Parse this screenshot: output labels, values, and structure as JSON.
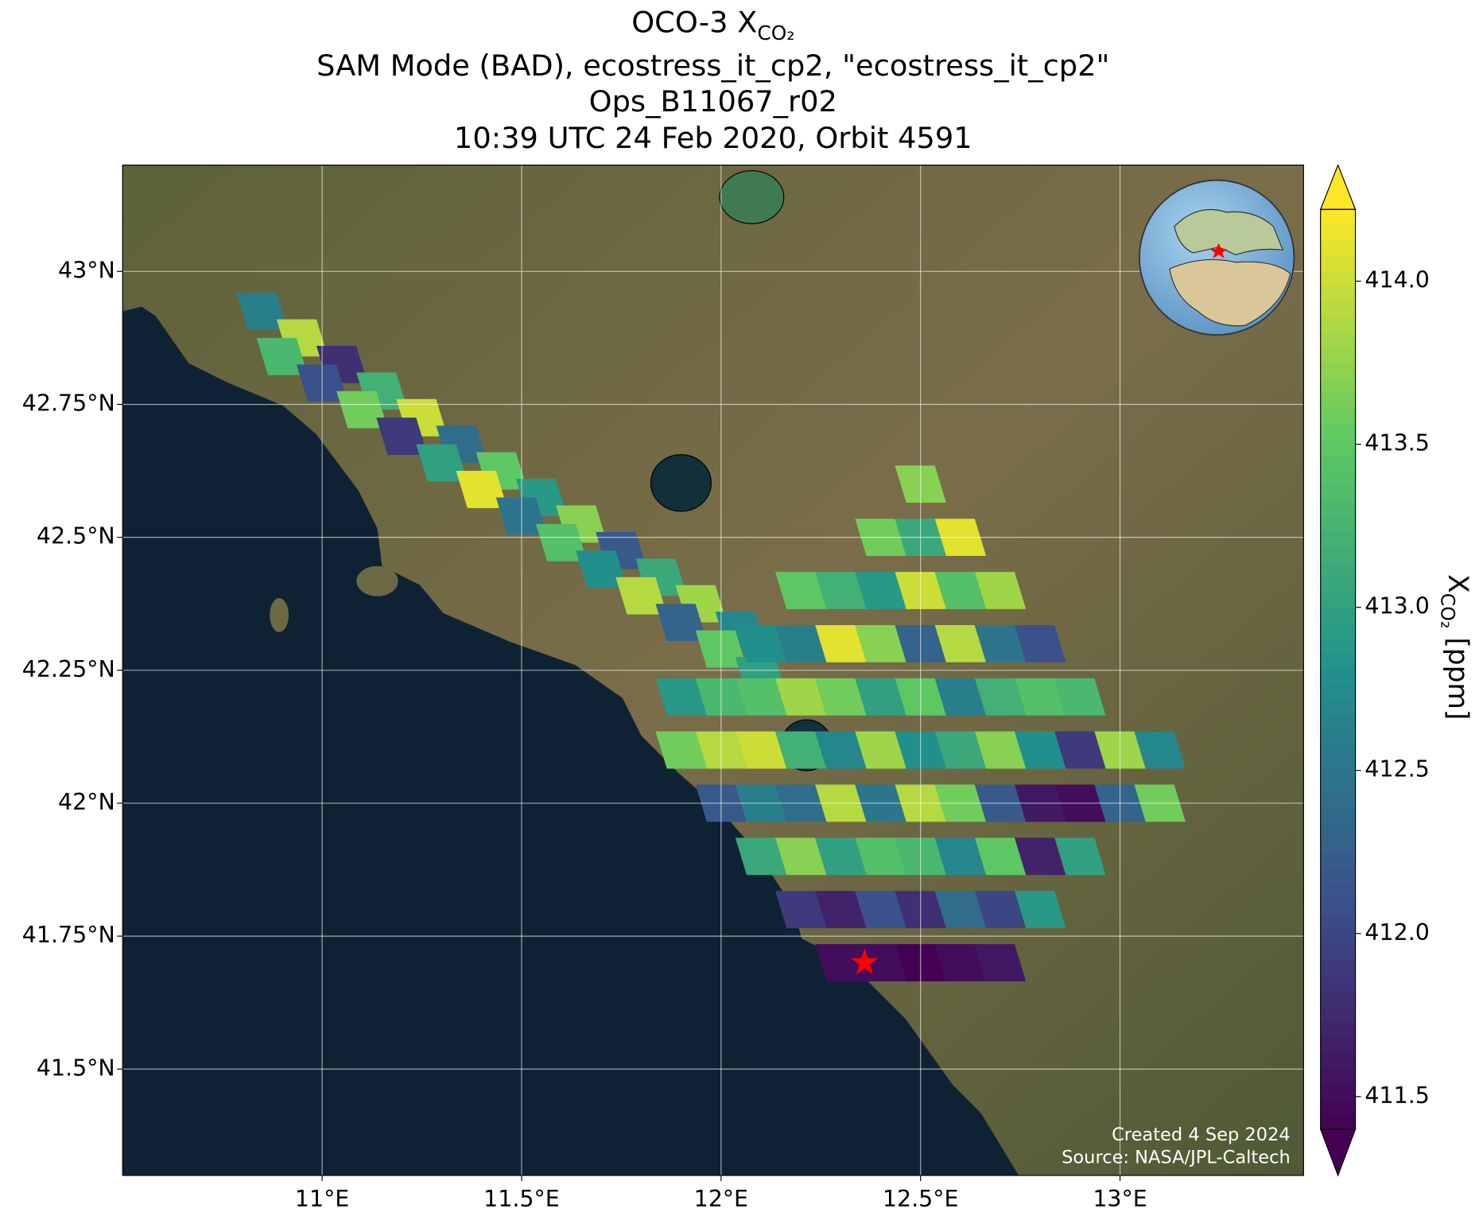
{
  "chart_data": {
    "type": "map",
    "title": {
      "main": "OCO-3 X",
      "subscript": "CO₂",
      "lines": [
        "SAM Mode (BAD), ecostress_it_cp2, \"ecostress_it_cp2\"",
        "Ops_B11067_r02",
        "10:39 UTC 24 Feb 2020, Orbit 4591"
      ]
    },
    "xlim": [
      10.5,
      13.46
    ],
    "ylim": [
      41.3,
      43.2
    ],
    "xticks": [
      {
        "value": 11,
        "label": "11°E"
      },
      {
        "value": 11.5,
        "label": "11.5°E"
      },
      {
        "value": 12,
        "label": "12°E"
      },
      {
        "value": 12.5,
        "label": "12.5°E"
      },
      {
        "value": 13,
        "label": "13°E"
      }
    ],
    "yticks": [
      {
        "value": 41.5,
        "label": "41.5°N"
      },
      {
        "value": 41.75,
        "label": "41.75°N"
      },
      {
        "value": 42,
        "label": "42°N"
      },
      {
        "value": 42.25,
        "label": "42.25°N"
      },
      {
        "value": 42.5,
        "label": "42.5°N"
      },
      {
        "value": 42.75,
        "label": "42.75°N"
      },
      {
        "value": 43,
        "label": "43°N"
      }
    ],
    "grid": true,
    "colormap": "viridis",
    "colorbar": {
      "label": {
        "main": "X",
        "subscript": "CO₂",
        "unit": " [ppm]"
      },
      "lim": [
        411.4,
        414.22
      ],
      "ticks": [
        411.5,
        {
          "value": 412,
          "label": "412.0"
        },
        412.5,
        {
          "value": 413,
          "label": "413.0"
        },
        413.5,
        {
          "value": 414,
          "label": "414.0"
        }
      ]
    },
    "target": {
      "lon": 12.36,
      "lat": 41.7,
      "color": "#ff0000"
    },
    "soundings": {
      "lon": [
        10.85,
        10.95,
        11.05,
        11.15,
        11.25,
        11.35,
        11.45,
        11.55,
        11.65,
        11.75,
        11.85,
        11.95,
        12.05,
        10.9,
        11.0,
        11.1,
        11.2,
        11.3,
        11.4,
        11.5,
        11.6,
        11.7,
        11.8,
        11.9,
        12.0,
        12.1,
        11.9,
        11.9,
        12.0,
        12.0,
        12.0,
        12.1,
        12.1,
        12.1,
        12.1,
        12.1,
        12.2,
        12.2,
        12.2,
        12.2,
        12.2,
        12.2,
        12.2,
        12.3,
        12.3,
        12.3,
        12.3,
        12.3,
        12.3,
        12.3,
        12.3,
        12.4,
        12.4,
        12.4,
        12.4,
        12.4,
        12.4,
        12.4,
        12.4,
        12.4,
        12.5,
        12.5,
        12.5,
        12.5,
        12.5,
        12.5,
        12.5,
        12.5,
        12.5,
        12.5,
        12.6,
        12.6,
        12.6,
        12.6,
        12.6,
        12.6,
        12.6,
        12.6,
        12.6,
        12.7,
        12.7,
        12.7,
        12.7,
        12.7,
        12.7,
        12.7,
        12.7,
        12.8,
        12.8,
        12.8,
        12.8,
        12.8,
        12.8,
        12.9,
        12.9,
        12.9,
        12.9,
        13.0,
        13.0,
        13.1,
        13.1
      ],
      "lat": [
        42.925,
        42.875,
        42.825,
        42.775,
        42.725,
        42.675,
        42.625,
        42.575,
        42.525,
        42.475,
        42.425,
        42.375,
        42.325,
        42.84,
        42.79,
        42.74,
        42.69,
        42.64,
        42.59,
        42.54,
        42.49,
        42.44,
        42.39,
        42.34,
        42.29,
        42.24,
        42.1,
        42.2,
        42.0,
        42.1,
        42.2,
        41.9,
        42.0,
        42.1,
        42.2,
        42.3,
        41.8,
        41.9,
        42.0,
        42.1,
        42.2,
        42.3,
        42.4,
        41.7,
        41.8,
        41.9,
        42.0,
        42.1,
        42.2,
        42.3,
        42.4,
        41.7,
        41.8,
        41.9,
        42.0,
        42.1,
        42.2,
        42.3,
        42.4,
        42.5,
        41.7,
        41.8,
        41.9,
        42.0,
        42.1,
        42.2,
        42.3,
        42.4,
        42.5,
        42.6,
        41.7,
        41.8,
        41.9,
        42.0,
        42.1,
        42.2,
        42.3,
        42.4,
        42.5,
        41.7,
        41.8,
        41.9,
        42.0,
        42.1,
        42.2,
        42.3,
        42.4,
        41.8,
        41.9,
        42.0,
        42.1,
        42.2,
        42.3,
        41.9,
        42.0,
        42.1,
        42.2,
        42.0,
        42.1,
        42.0,
        42.1
      ],
      "xco2": [
        412.6,
        413.9,
        411.8,
        413.2,
        414.0,
        412.4,
        413.5,
        412.9,
        413.7,
        412.2,
        413.1,
        413.8,
        412.7,
        413.3,
        412.1,
        413.6,
        411.9,
        413.0,
        414.1,
        412.5,
        413.4,
        412.8,
        413.9,
        412.3,
        413.5,
        413.0,
        413.6,
        412.9,
        412.2,
        413.9,
        413.3,
        413.1,
        412.6,
        414.0,
        413.4,
        412.8,
        411.9,
        413.7,
        412.4,
        413.2,
        413.8,
        412.6,
        413.5,
        411.5,
        411.7,
        413.0,
        413.9,
        412.7,
        413.6,
        414.1,
        413.2,
        411.5,
        412.1,
        413.4,
        412.5,
        413.8,
        413.0,
        413.7,
        412.9,
        413.6,
        411.4,
        411.8,
        413.3,
        413.9,
        412.8,
        413.5,
        412.3,
        414.0,
        413.1,
        413.7,
        411.5,
        412.4,
        412.7,
        413.6,
        413.1,
        412.6,
        413.9,
        413.4,
        414.1,
        411.6,
        412.0,
        413.5,
        412.2,
        413.7,
        413.2,
        412.5,
        413.8,
        412.9,
        411.7,
        411.6,
        412.8,
        413.4,
        412.1,
        413.0,
        411.5,
        411.9,
        413.3,
        412.3,
        413.8,
        413.6,
        412.7
      ]
    },
    "credits": [
      "Created 4 Sep 2024",
      "Source: NASA/JPL-Caltech"
    ]
  }
}
